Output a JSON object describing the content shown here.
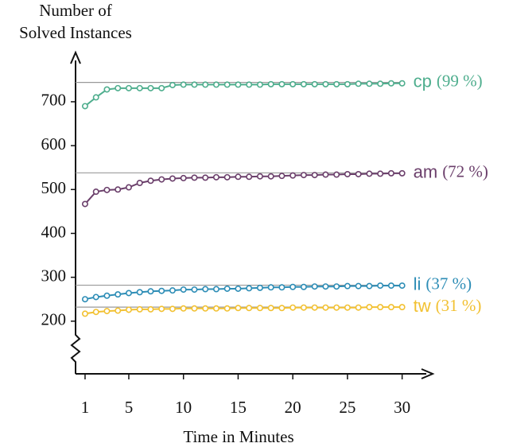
{
  "chart_data": {
    "type": "line",
    "y_label": [
      "Number of",
      "Solved Instances"
    ],
    "x_label": "Time in Minutes",
    "x": [
      1,
      2,
      3,
      4,
      5,
      6,
      7,
      8,
      9,
      10,
      11,
      12,
      13,
      14,
      15,
      16,
      17,
      18,
      19,
      20,
      21,
      22,
      23,
      24,
      25,
      26,
      27,
      28,
      29,
      30
    ],
    "xlim": [
      0.13,
      32.5
    ],
    "xticks": [
      1,
      5,
      10,
      15,
      20,
      25,
      30
    ],
    "ylim": [
      80,
      805
    ],
    "yticks": [
      200,
      300,
      400,
      500,
      600,
      700
    ],
    "series": [
      {
        "name": "cp",
        "share_label": "(99 %)",
        "color": "#4fae8e",
        "reference": 744,
        "values": [
          690,
          710,
          728,
          731,
          731,
          731,
          731,
          731,
          738,
          739,
          739,
          739,
          739,
          739,
          739,
          739,
          739,
          740,
          740,
          740,
          740,
          740,
          740,
          740,
          740,
          741,
          741,
          741,
          742,
          742
        ]
      },
      {
        "name": "am",
        "share_label": "(72 %)",
        "color": "#6b3f6b",
        "reference": 538,
        "values": [
          467,
          495,
          499,
          500,
          505,
          515,
          520,
          523,
          525,
          526,
          527,
          527,
          528,
          528,
          529,
          529,
          530,
          530,
          531,
          532,
          533,
          533,
          534,
          534,
          535,
          535,
          536,
          536,
          537,
          537
        ]
      },
      {
        "name": "li",
        "share_label": "(37 %)",
        "color": "#2d8db6",
        "reference": 282,
        "values": [
          250,
          255,
          258,
          261,
          264,
          266,
          268,
          269,
          270,
          272,
          272,
          273,
          273,
          274,
          274,
          275,
          276,
          277,
          277,
          278,
          278,
          279,
          279,
          279,
          280,
          280,
          280,
          281,
          281,
          281
        ]
      },
      {
        "name": "tw",
        "share_label": "(31 %)",
        "color": "#f2c132",
        "reference": 232,
        "values": [
          217,
          221,
          223,
          224,
          226,
          227,
          227,
          228,
          228,
          229,
          229,
          229,
          229,
          229,
          230,
          230,
          230,
          230,
          230,
          231,
          231,
          231,
          231,
          231,
          231,
          231,
          232,
          232,
          232,
          232
        ]
      }
    ]
  }
}
